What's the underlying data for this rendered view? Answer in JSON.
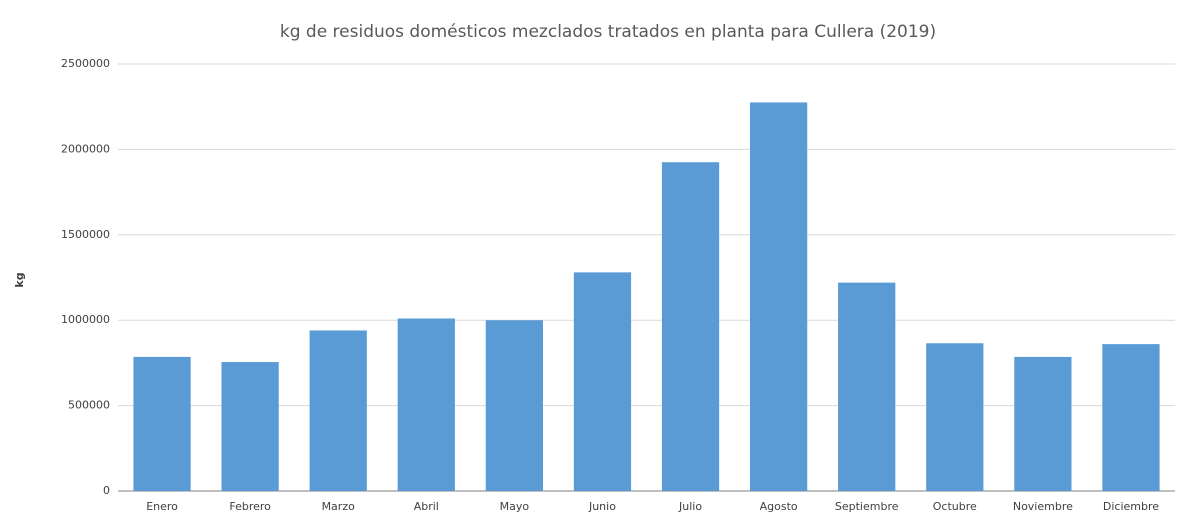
{
  "chart_data": {
    "type": "bar",
    "title": "kg de residuos domésticos mezclados tratados en planta para Cullera (2019)",
    "y_label": "kg",
    "categories": [
      "Enero",
      "Febrero",
      "Marzo",
      "Abril",
      "Mayo",
      "Junio",
      "Julio",
      "Agosto",
      "Septiembre",
      "Octubre",
      "Noviembre",
      "Diciembre"
    ],
    "values": [
      785000,
      755000,
      940000,
      1010000,
      1000000,
      1280000,
      1925000,
      2275000,
      1220000,
      865000,
      785000,
      860000
    ],
    "color": "#5b9bd5",
    "ylim": [
      0,
      2500000
    ],
    "yticks": [
      0,
      500000,
      1000000,
      1500000,
      2000000,
      2500000
    ],
    "grid": true
  }
}
